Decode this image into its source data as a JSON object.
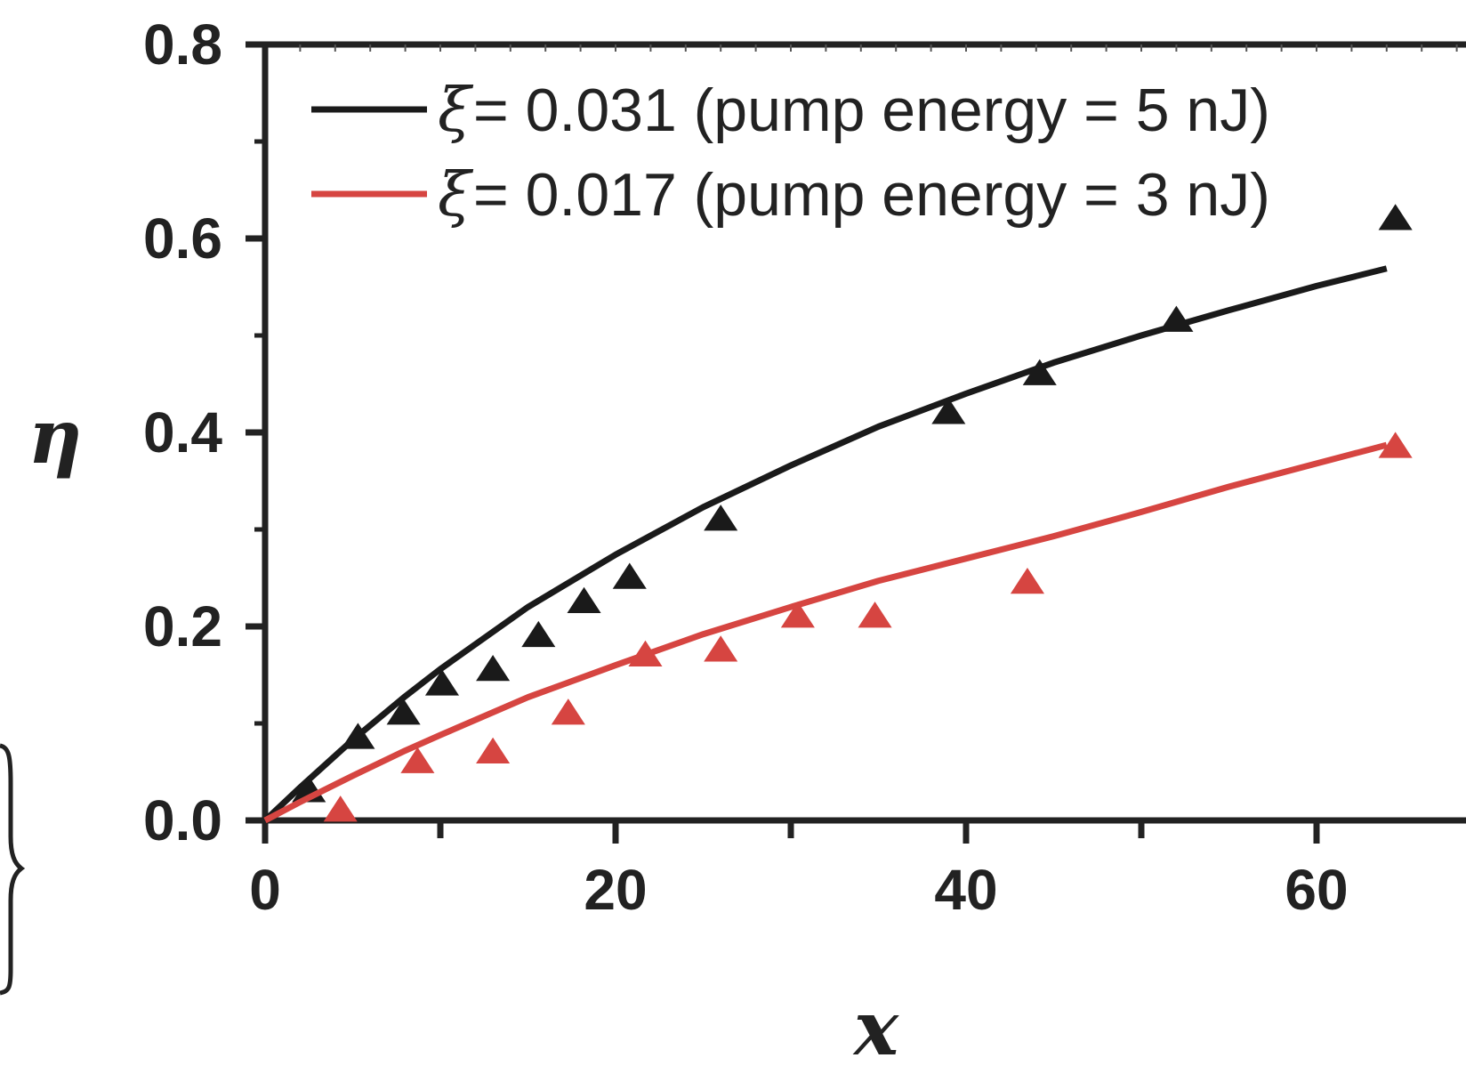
{
  "chart_data": {
    "type": "line",
    "xlabel": "x",
    "ylabel": "η",
    "xlim": [
      0,
      64
    ],
    "ylim": [
      0,
      0.8
    ],
    "x_ticks": [
      0,
      20,
      40,
      60
    ],
    "x_tick_labels": [
      "0",
      "20",
      "40",
      "60"
    ],
    "y_ticks": [
      0.0,
      0.2,
      0.4,
      0.6,
      0.8
    ],
    "y_tick_labels": [
      "0.0",
      "0.2",
      "0.4",
      "0.6",
      "0.8"
    ],
    "legend_placement": "top",
    "series": [
      {
        "name": "ξ = 0.031 (pump energy = 5 nJ)",
        "legend_symbol": "ξ",
        "legend_text": " = 0.031 (pump energy = 5 nJ)",
        "color": "#1a1a1a",
        "fit_curve": {
          "x": [
            0,
            2,
            5,
            8,
            10,
            15,
            20,
            25,
            30,
            35,
            40,
            45,
            50,
            55,
            60,
            64
          ],
          "y": [
            0,
            0.034,
            0.083,
            0.128,
            0.156,
            0.22,
            0.274,
            0.323,
            0.366,
            0.406,
            0.44,
            0.472,
            0.5,
            0.526,
            0.551,
            0.569
          ]
        },
        "points": {
          "x": [
            2.5,
            5.3,
            7.9,
            10.1,
            13.0,
            15.6,
            18.2,
            20.8,
            26.0,
            39.0,
            44.2,
            52.0,
            64.5
          ],
          "y": [
            0.03,
            0.085,
            0.11,
            0.14,
            0.155,
            0.19,
            0.225,
            0.25,
            0.31,
            0.42,
            0.46,
            0.515,
            0.62
          ]
        }
      },
      {
        "name": "ξ = 0.017 (pump energy = 3 nJ)",
        "legend_symbol": "ξ",
        "legend_text": " = 0.017 (pump energy = 3 nJ)",
        "color": "#d64541",
        "fit_curve": {
          "x": [
            0,
            2,
            5,
            8,
            10,
            15,
            20,
            25,
            30,
            35,
            40,
            45,
            50,
            55,
            60,
            64
          ],
          "y": [
            0,
            0.019,
            0.046,
            0.072,
            0.088,
            0.127,
            0.16,
            0.192,
            0.22,
            0.247,
            0.27,
            0.293,
            0.318,
            0.344,
            0.368,
            0.387
          ]
        },
        "points": {
          "x": [
            4.3,
            8.7,
            13.0,
            17.3,
            21.7,
            26.0,
            30.4,
            34.8,
            43.5,
            64.5
          ],
          "y": [
            0.01,
            0.06,
            0.07,
            0.11,
            0.17,
            0.175,
            0.21,
            0.21,
            0.245,
            0.385
          ]
        }
      }
    ]
  }
}
